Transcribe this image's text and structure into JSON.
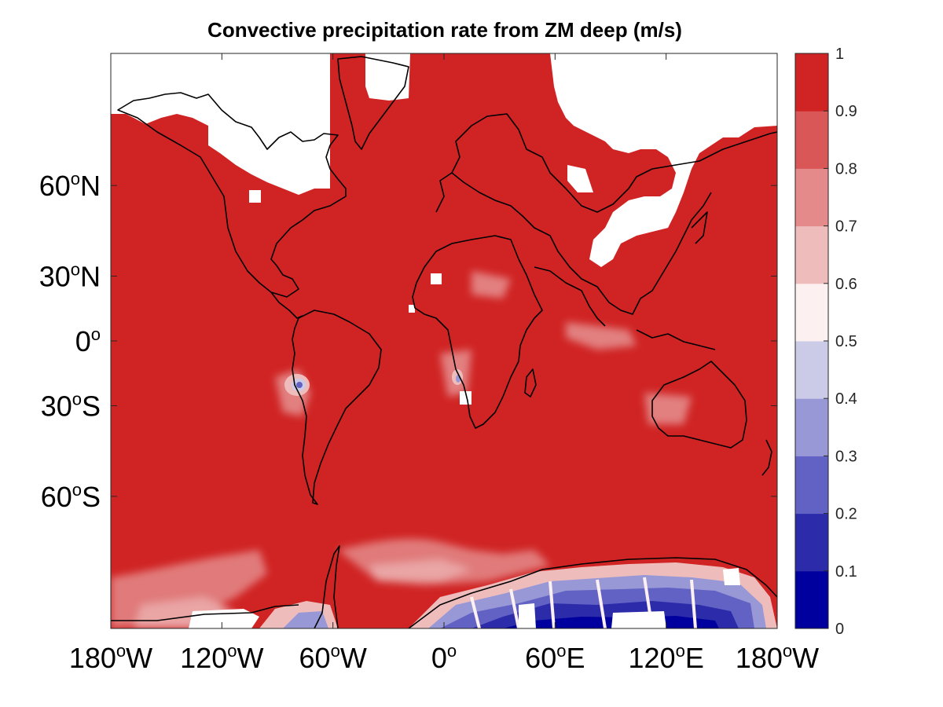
{
  "chart_data": {
    "type": "heatmap",
    "title": "Convective precipitation rate from ZM deep (m/s)",
    "projection": "mercator",
    "xlim": [
      -180,
      180
    ],
    "ylim": [
      -80,
      80
    ],
    "x_ticks": [
      {
        "value": -180,
        "deg": "180",
        "hemi": "W"
      },
      {
        "value": -120,
        "deg": "120",
        "hemi": "W"
      },
      {
        "value": -60,
        "deg": "60",
        "hemi": "W"
      },
      {
        "value": 0,
        "deg": "0",
        "hemi": ""
      },
      {
        "value": 60,
        "deg": "60",
        "hemi": "E"
      },
      {
        "value": 120,
        "deg": "120",
        "hemi": "E"
      },
      {
        "value": 180,
        "deg": "180",
        "hemi": "W"
      }
    ],
    "y_ticks": [
      {
        "value": 60,
        "deg": "60",
        "hemi": "N"
      },
      {
        "value": 30,
        "deg": "30",
        "hemi": "N"
      },
      {
        "value": 0,
        "deg": "0",
        "hemi": ""
      },
      {
        "value": -30,
        "deg": "30",
        "hemi": "S"
      },
      {
        "value": -60,
        "deg": "60",
        "hemi": "S"
      }
    ],
    "colorbar": {
      "range": [
        0,
        1
      ],
      "ticks": [
        "1",
        "0.9",
        "0.8",
        "0.7",
        "0.6",
        "0.5",
        "0.4",
        "0.3",
        "0.2",
        "0.1",
        "0"
      ],
      "levels": [
        {
          "from": 0.0,
          "to": 0.1,
          "color": "#00009e"
        },
        {
          "from": 0.1,
          "to": 0.2,
          "color": "#2c2cab"
        },
        {
          "from": 0.2,
          "to": 0.3,
          "color": "#6262c4"
        },
        {
          "from": 0.3,
          "to": 0.4,
          "color": "#9898d6"
        },
        {
          "from": 0.4,
          "to": 0.5,
          "color": "#cbcbe8"
        },
        {
          "from": 0.5,
          "to": 0.6,
          "color": "#fcf0f0"
        },
        {
          "from": 0.6,
          "to": 0.7,
          "color": "#efbcbc"
        },
        {
          "from": 0.7,
          "to": 0.8,
          "color": "#e48a8a"
        },
        {
          "from": 0.8,
          "to": 0.9,
          "color": "#d95757"
        },
        {
          "from": 0.9,
          "to": 1.0,
          "color": "#d02424"
        }
      ]
    },
    "field_summary": {
      "background_value": 0.95,
      "low_value_regions": [
        {
          "name": "Antarctic coast",
          "lon": [
            -10,
            170
          ],
          "lat": [
            -80,
            -68
          ],
          "value": 0.1
        },
        {
          "name": "Andes",
          "lon": [
            -72,
            -66
          ],
          "lat": [
            -22,
            -14
          ],
          "value": 0.4
        }
      ],
      "missing_regions": [
        {
          "name": "Canadian Arctic",
          "lon": [
            -180,
            -100
          ],
          "lat": [
            68,
            80
          ]
        },
        {
          "name": "Greenland",
          "lon": [
            -50,
            -20
          ],
          "lat": [
            72,
            80
          ]
        },
        {
          "name": "Siberia",
          "lon": [
            40,
            150
          ],
          "lat": [
            60,
            80
          ]
        },
        {
          "name": "Mongolia / Gobi",
          "lon": [
            80,
            120
          ],
          "lat": [
            38,
            55
          ]
        },
        {
          "name": "Antarctic interior",
          "lon": [
            -180,
            180
          ],
          "lat": [
            -80,
            -76
          ]
        }
      ]
    },
    "colors": {
      "land_outline": "#000000",
      "missing": "#ffffff",
      "axes": "#262626"
    }
  }
}
